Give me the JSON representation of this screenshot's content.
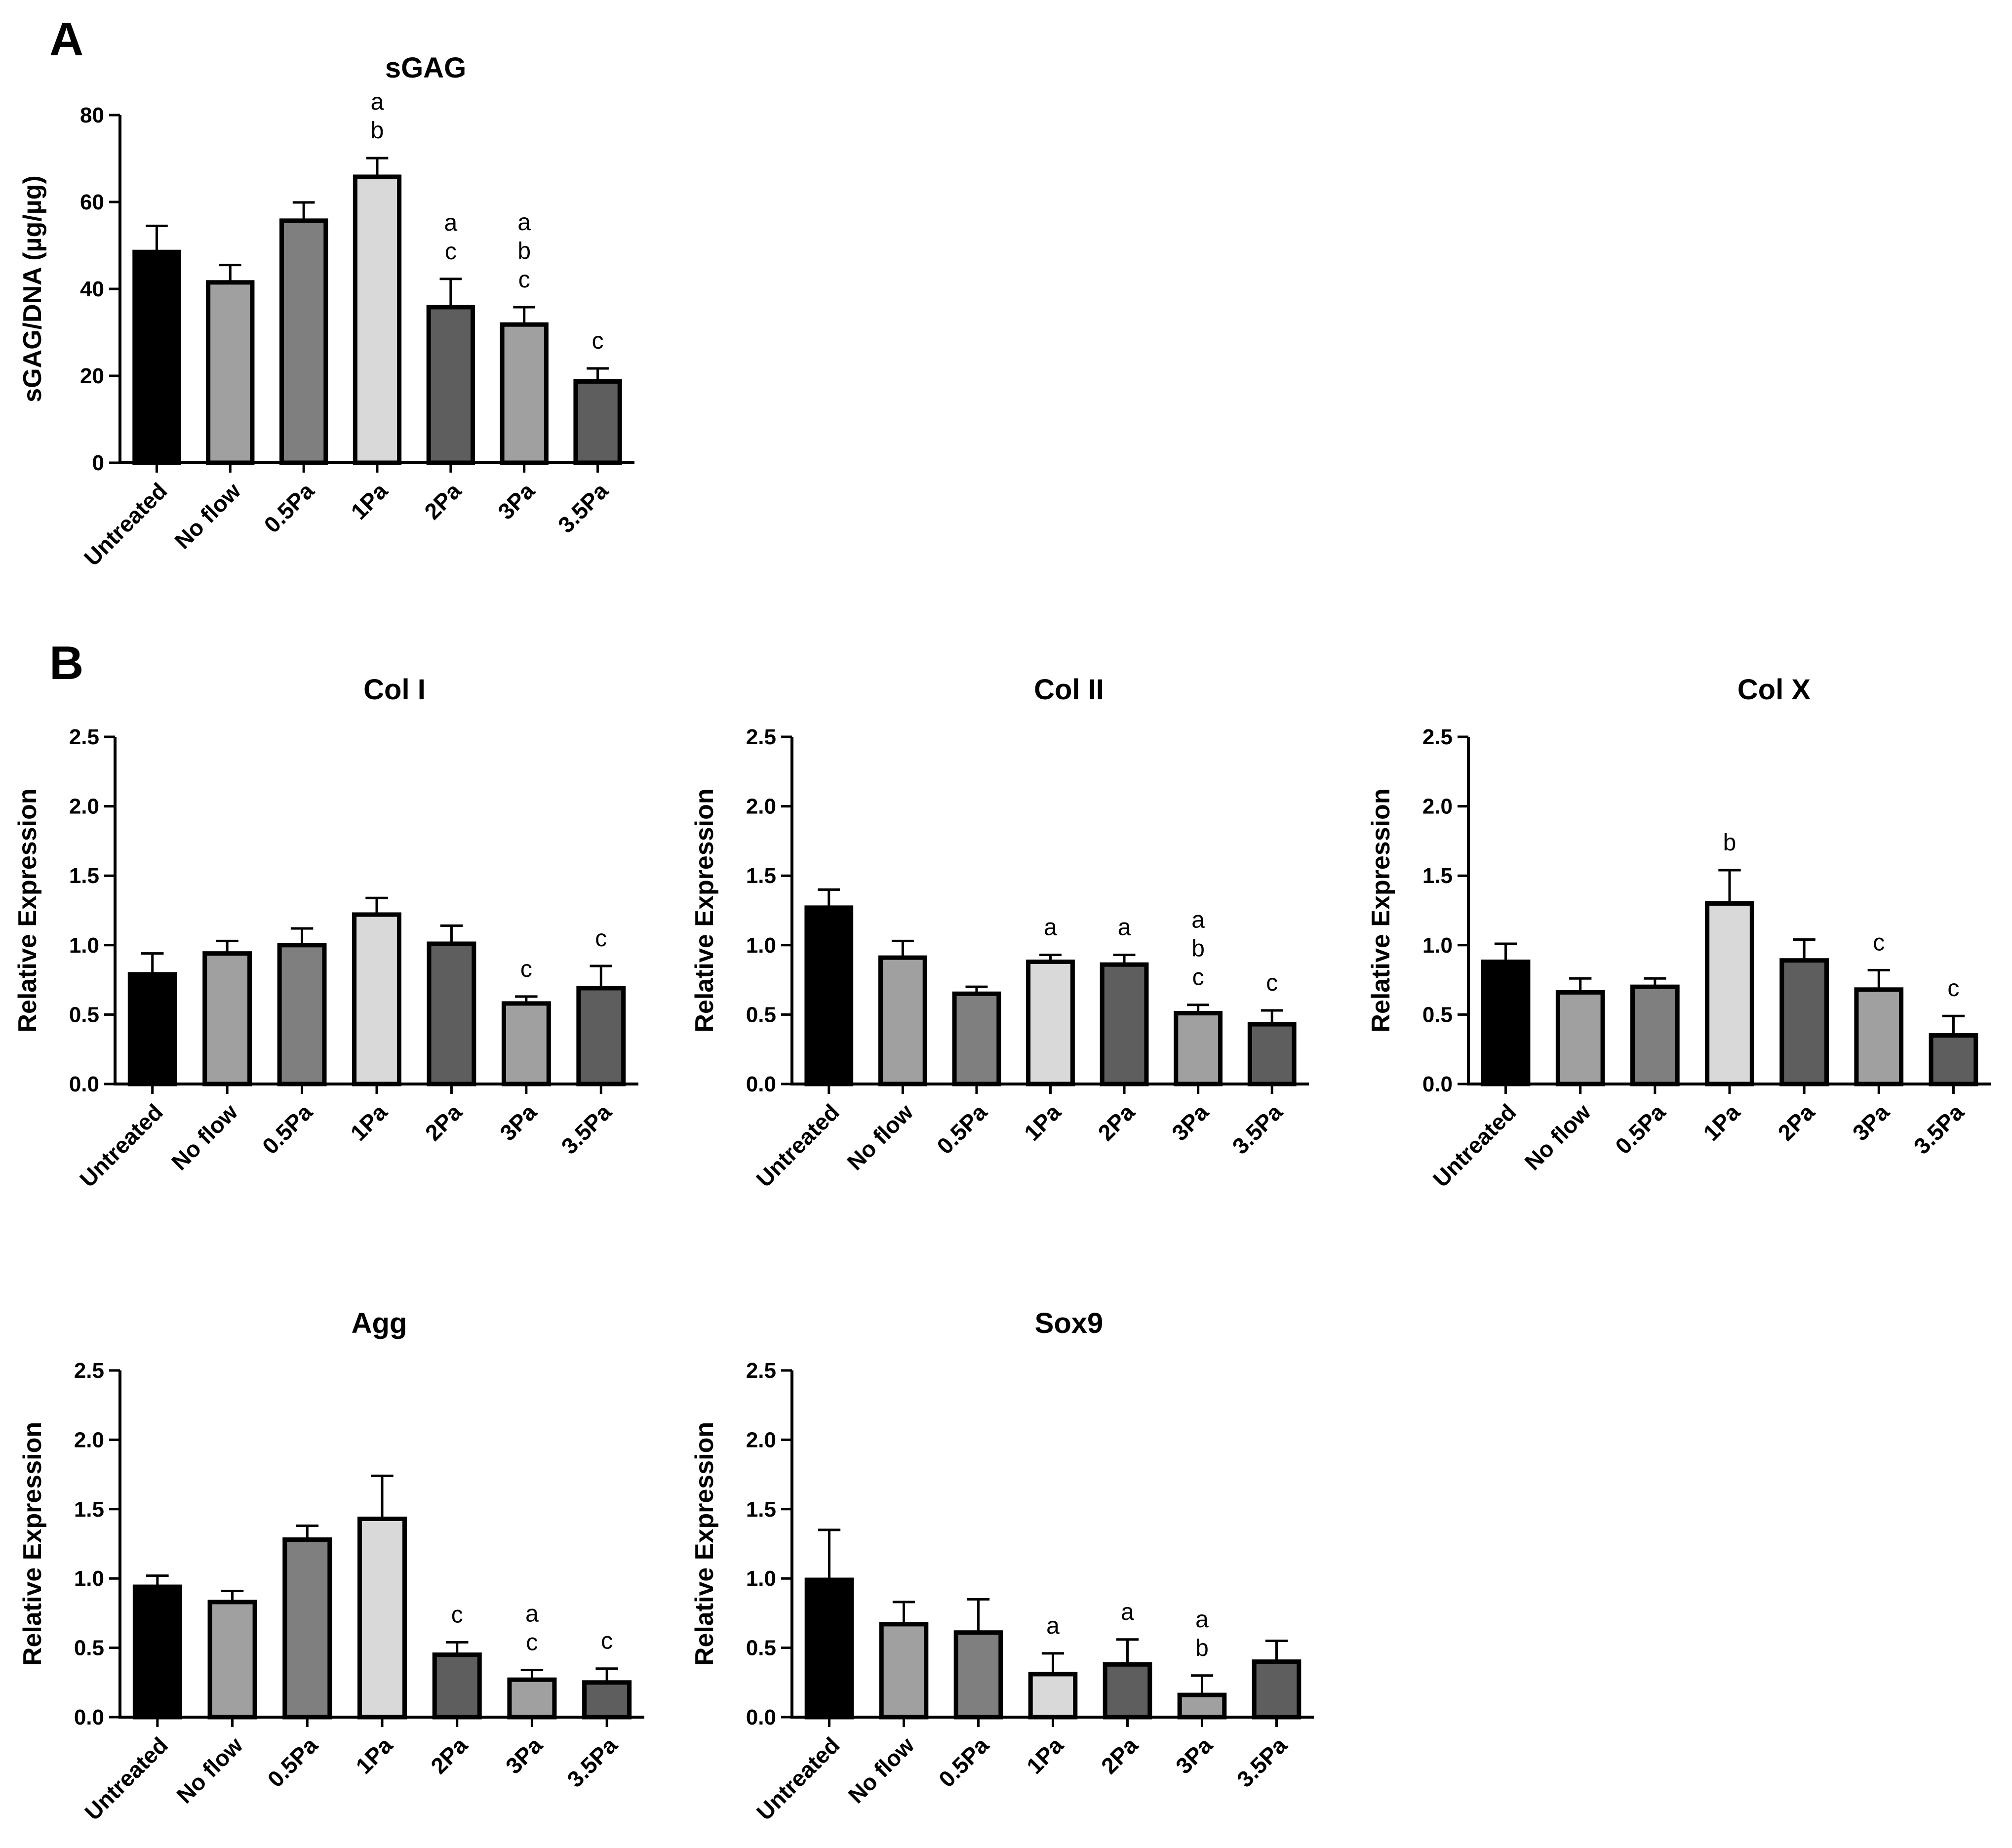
{
  "figure": {
    "panel_labels": [
      "A",
      "B"
    ]
  },
  "chart_data": [
    {
      "type": "bar",
      "panel": "A",
      "title": "sGAG",
      "xlabel": "",
      "ylabel": "sGAG/DNA (µg/µg)",
      "categories": [
        "Untreated",
        "No flow",
        "0.5Pa",
        "1Pa",
        "2Pa",
        "3Pa",
        "3.5Pa"
      ],
      "values": [
        48.5,
        41.5,
        55.7,
        65.8,
        35.8,
        31.8,
        18.7
      ],
      "errors": [
        6.0,
        4.0,
        4.2,
        4.3,
        6.5,
        4.0,
        3.0
      ],
      "significance": [
        [],
        [],
        [],
        [
          "a",
          "b"
        ],
        [
          "a",
          "c"
        ],
        [
          "a",
          "b",
          "c"
        ],
        [
          "c"
        ]
      ],
      "ylim": [
        0,
        80
      ],
      "yticks": [
        0,
        20,
        40,
        60,
        80
      ],
      "colors": [
        "#000000",
        "#a0a0a0",
        "#7f7f7f",
        "#d9d9d9",
        "#5e5e5e",
        "#a0a0a0",
        "#5e5e5e"
      ],
      "grid": false
    },
    {
      "type": "bar",
      "panel": "B",
      "title": "Col I",
      "xlabel": "",
      "ylabel": "Relative Expression",
      "categories": [
        "Untreated",
        "No flow",
        "0.5Pa",
        "1Pa",
        "2Pa",
        "3Pa",
        "3.5Pa"
      ],
      "values": [
        0.79,
        0.94,
        1.0,
        1.22,
        1.01,
        0.58,
        0.69
      ],
      "errors": [
        0.15,
        0.09,
        0.12,
        0.12,
        0.13,
        0.05,
        0.16
      ],
      "significance": [
        [],
        [],
        [],
        [],
        [],
        [
          "c"
        ],
        [
          "c"
        ]
      ],
      "ylim": [
        0,
        2.5
      ],
      "yticks": [
        "0.0",
        "0.5",
        "1.0",
        "1.5",
        "2.0",
        "2.5"
      ],
      "colors": [
        "#000000",
        "#a0a0a0",
        "#7f7f7f",
        "#d9d9d9",
        "#5e5e5e",
        "#a0a0a0",
        "#5e5e5e"
      ],
      "grid": false
    },
    {
      "type": "bar",
      "title": "Col II",
      "xlabel": "",
      "ylabel": "Relative Expression",
      "categories": [
        "Untreated",
        "No flow",
        "0.5Pa",
        "1Pa",
        "2Pa",
        "3Pa",
        "3.5Pa"
      ],
      "values": [
        1.27,
        0.91,
        0.65,
        0.88,
        0.86,
        0.51,
        0.43
      ],
      "errors": [
        0.13,
        0.12,
        0.05,
        0.05,
        0.07,
        0.06,
        0.1
      ],
      "significance": [
        [],
        [],
        [],
        [
          "a"
        ],
        [
          "a"
        ],
        [
          "a",
          "b",
          "c"
        ],
        [
          "c"
        ]
      ],
      "ylim": [
        0,
        2.5
      ],
      "yticks": [
        "0.0",
        "0.5",
        "1.0",
        "1.5",
        "2.0",
        "2.5"
      ],
      "colors": [
        "#000000",
        "#a0a0a0",
        "#7f7f7f",
        "#d9d9d9",
        "#5e5e5e",
        "#a0a0a0",
        "#5e5e5e"
      ],
      "grid": false
    },
    {
      "type": "bar",
      "title": "Col X",
      "xlabel": "",
      "ylabel": "Relative Expression",
      "categories": [
        "Untreated",
        "No flow",
        "0.5Pa",
        "1Pa",
        "2Pa",
        "3Pa",
        "3.5Pa"
      ],
      "values": [
        0.88,
        0.66,
        0.7,
        1.3,
        0.89,
        0.68,
        0.35
      ],
      "errors": [
        0.13,
        0.1,
        0.06,
        0.24,
        0.15,
        0.14,
        0.14
      ],
      "significance": [
        [],
        [],
        [],
        [
          "b"
        ],
        [],
        [
          "c"
        ],
        [
          "c"
        ]
      ],
      "ylim": [
        0,
        2.5
      ],
      "yticks": [
        "0.0",
        "0.5",
        "1.0",
        "1.5",
        "2.0",
        "2.5"
      ],
      "colors": [
        "#000000",
        "#a0a0a0",
        "#7f7f7f",
        "#d9d9d9",
        "#5e5e5e",
        "#a0a0a0",
        "#5e5e5e"
      ],
      "grid": false
    },
    {
      "type": "bar",
      "title": "Agg",
      "xlabel": "",
      "ylabel": "Relative Expression",
      "categories": [
        "Untreated",
        "No flow",
        "0.5Pa",
        "1Pa",
        "2Pa",
        "3Pa",
        "3.5Pa"
      ],
      "values": [
        0.94,
        0.83,
        1.28,
        1.43,
        0.45,
        0.27,
        0.25
      ],
      "errors": [
        0.08,
        0.08,
        0.1,
        0.31,
        0.09,
        0.07,
        0.1
      ],
      "significance": [
        [],
        [],
        [],
        [],
        [
          "c"
        ],
        [
          "a",
          "c"
        ],
        [
          "c"
        ]
      ],
      "ylim": [
        0,
        2.5
      ],
      "yticks": [
        "0.0",
        "0.5",
        "1.0",
        "1.5",
        "2.0",
        "2.5"
      ],
      "colors": [
        "#000000",
        "#a0a0a0",
        "#7f7f7f",
        "#d9d9d9",
        "#5e5e5e",
        "#a0a0a0",
        "#5e5e5e"
      ],
      "grid": false
    },
    {
      "type": "bar",
      "title": "Sox9",
      "xlabel": "",
      "ylabel": "Relative Expression",
      "categories": [
        "Untreated",
        "No flow",
        "0.5Pa",
        "1Pa",
        "2Pa",
        "3Pa",
        "3.5Pa"
      ],
      "values": [
        0.99,
        0.67,
        0.61,
        0.31,
        0.38,
        0.16,
        0.4
      ],
      "errors": [
        0.36,
        0.16,
        0.24,
        0.15,
        0.18,
        0.14,
        0.15
      ],
      "significance": [
        [],
        [],
        [],
        [
          "a"
        ],
        [
          "a"
        ],
        [
          "a",
          "b"
        ],
        []
      ],
      "ylim": [
        0,
        2.5
      ],
      "yticks": [
        "0.0",
        "0.5",
        "1.0",
        "1.5",
        "2.0",
        "2.5"
      ],
      "colors": [
        "#000000",
        "#a0a0a0",
        "#7f7f7f",
        "#d9d9d9",
        "#5e5e5e",
        "#a0a0a0",
        "#5e5e5e"
      ],
      "grid": false
    }
  ]
}
